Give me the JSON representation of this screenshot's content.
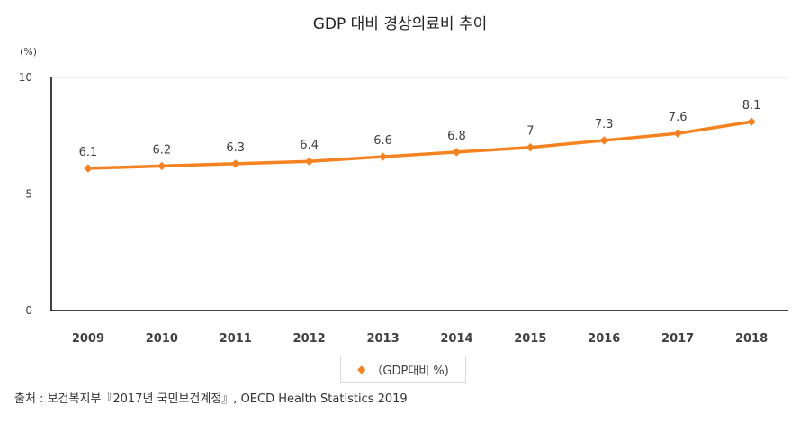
{
  "chart_data": {
    "type": "line",
    "title": "GDP 대비 경상의료비 추이",
    "ylabel": "(%)",
    "xlabel": "",
    "categories": [
      "2009",
      "2010",
      "2011",
      "2012",
      "2013",
      "2014",
      "2015",
      "2016",
      "2017",
      "2018"
    ],
    "series": [
      {
        "name": "（GDP대비  %)",
        "values": [
          6.1,
          6.2,
          6.3,
          6.4,
          6.6,
          6.8,
          7,
          7.3,
          7.6,
          8.1
        ],
        "color": "#F58220"
      }
    ],
    "data_labels": [
      "6.1",
      "6.2",
      "6.3",
      "6.4",
      "6.6",
      "6.8",
      "7",
      "7.3",
      "7.6",
      "8.1"
    ],
    "ylim": [
      0,
      10
    ],
    "yticks": [
      "0",
      "5",
      "10"
    ],
    "grid": true,
    "legend_position": "bottom"
  },
  "source": "출처 : 보건복지부『2017년 국민보건계정』, OECD Health Statistics 2019",
  "colors": {
    "line": "#F58220",
    "grid": "#e6e6e6",
    "axis": "#000000"
  }
}
